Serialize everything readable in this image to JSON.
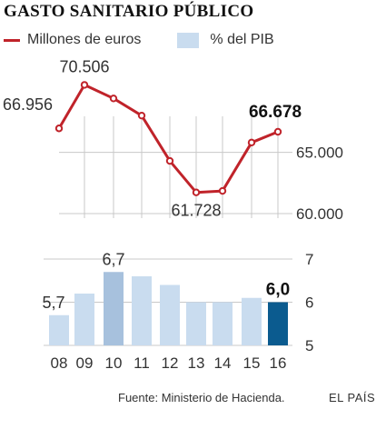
{
  "title": "GASTO SANITARIO PÚBLICO",
  "legend": {
    "line_label": "Millones de euros",
    "bar_label": "% del PIB"
  },
  "colors": {
    "line": "#c0232a",
    "bar_light": "#c9dcef",
    "bar_mid": "#a7c1dd",
    "bar_dark": "#0b5b8f",
    "grid": "#c8c8c8"
  },
  "chart_data": [
    {
      "type": "line",
      "x": [
        "08",
        "09",
        "10",
        "11",
        "12",
        "13",
        "14",
        "15",
        "16"
      ],
      "series": [
        {
          "name": "Millones de euros",
          "values": [
            66956,
            70506,
            69400,
            68000,
            64300,
            61728,
            61850,
            65800,
            66678
          ]
        }
      ],
      "point_labels": [
        {
          "index": 0,
          "text": "66.956"
        },
        {
          "index": 1,
          "text": "70.506"
        },
        {
          "index": 5,
          "text": "61.728"
        },
        {
          "index": 8,
          "text": "66.678"
        }
      ],
      "yticks": [
        {
          "value": 65000,
          "label": "65.000"
        },
        {
          "value": 60000,
          "label": "60.000"
        }
      ],
      "ylim": [
        60000,
        71500
      ],
      "grid": true
    },
    {
      "type": "bar",
      "categories": [
        "08",
        "09",
        "10",
        "11",
        "12",
        "13",
        "14",
        "15",
        "16"
      ],
      "values": [
        5.7,
        6.2,
        6.7,
        6.6,
        6.4,
        6.0,
        6.0,
        6.1,
        6.0
      ],
      "bar_labels": [
        {
          "index": 0,
          "text": "5,7"
        },
        {
          "index": 2,
          "text": "6,7"
        },
        {
          "index": 8,
          "text": "6,0"
        }
      ],
      "yticks": [
        {
          "value": 7,
          "label": "7"
        },
        {
          "value": 6,
          "label": "6"
        },
        {
          "value": 5,
          "label": "5"
        }
      ],
      "ylim": [
        5,
        7
      ],
      "grid": true
    }
  ],
  "footer": {
    "source": "Fuente: Ministerio de Hacienda.",
    "brand": "EL PAÍS"
  }
}
